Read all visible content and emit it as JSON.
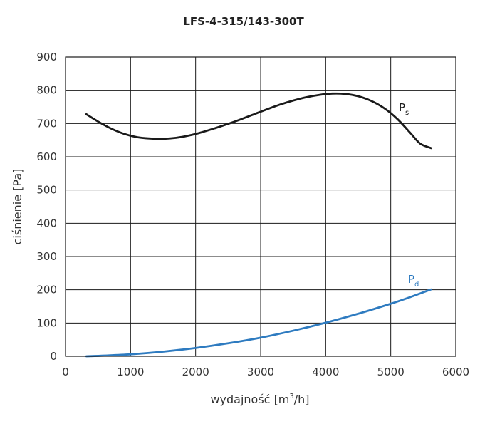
{
  "chart_data": {
    "type": "line",
    "title": "LFS-4-315/143-300T",
    "xlabel_main": "wydajność [m",
    "xlabel_sup": "3",
    "xlabel_end": "/h]",
    "ylabel": "ciśnienie [Pa]",
    "xlim": [
      0,
      6000
    ],
    "ylim": [
      0,
      900
    ],
    "xticks": [
      0,
      1000,
      2000,
      3000,
      4000,
      5000,
      6000
    ],
    "yticks": [
      0,
      100,
      200,
      300,
      400,
      500,
      600,
      700,
      800,
      900
    ],
    "xtick_labels": [
      "0",
      "1000",
      "2000",
      "3000",
      "4000",
      "5000",
      "6000"
    ],
    "ytick_labels": [
      "0",
      "100",
      "200",
      "300",
      "400",
      "500",
      "600",
      "700",
      "800",
      "900"
    ],
    "grid": true,
    "series": [
      {
        "name": "Ps",
        "label_main": "P",
        "label_sub": "s",
        "color": "#1a1a1a",
        "x": [
          320,
          500,
          700,
          900,
          1100,
          1300,
          1500,
          1700,
          1900,
          2100,
          2300,
          2500,
          2700,
          2900,
          3100,
          3300,
          3500,
          3700,
          3900,
          4100,
          4300,
          4500,
          4700,
          4900,
          5100,
          5300,
          5450,
          5620
        ],
        "y": [
          728,
          706,
          685,
          669,
          659,
          655,
          654,
          657,
          664,
          674,
          686,
          699,
          713,
          728,
          743,
          757,
          769,
          779,
          786,
          790,
          789,
          782,
          768,
          746,
          714,
          672,
          640,
          626
        ]
      },
      {
        "name": "Pd",
        "label_main": "P",
        "label_sub": "d",
        "color": "#2e7bc0",
        "x": [
          320,
          600,
          1000,
          1500,
          2000,
          2500,
          3000,
          3500,
          4000,
          4500,
          5000,
          5300,
          5620
        ],
        "y": [
          0,
          2,
          6,
          14,
          25,
          39,
          56,
          77,
          101,
          128,
          158,
          178,
          201
        ]
      }
    ]
  }
}
